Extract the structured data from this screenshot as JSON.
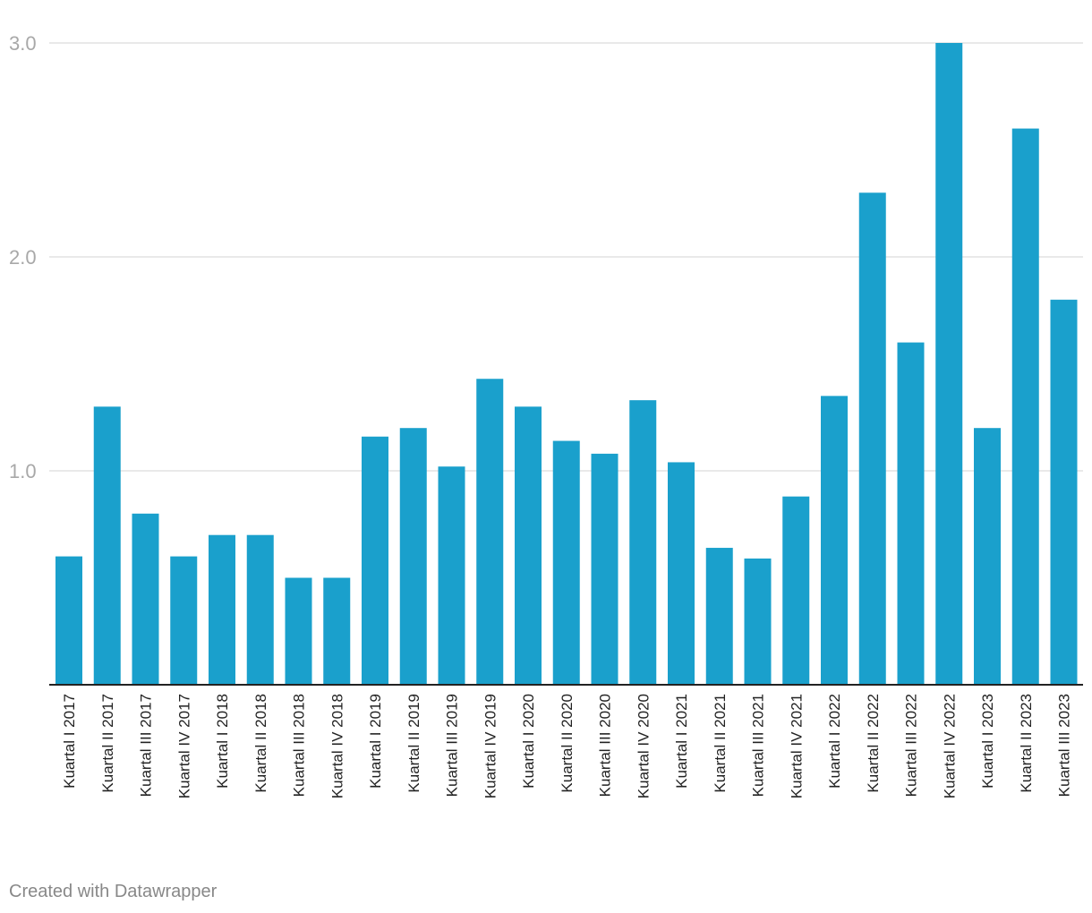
{
  "chart_data": {
    "type": "bar",
    "title": "",
    "xlabel": "",
    "ylabel": "",
    "ylim": [
      0,
      3.0
    ],
    "yticks": [
      1.0,
      2.0,
      3.0
    ],
    "ytick_labels": [
      "1.0",
      "2.0",
      "3.0"
    ],
    "grid": true,
    "bar_color": "#1aa0cc",
    "categories": [
      "Kuartal I 2017",
      "Kuartal II 2017",
      "Kuartal III 2017",
      "Kuartal IV 2017",
      "Kuartal I 2018",
      "Kuartal II 2018",
      "Kuartal III 2018",
      "Kuartal IV 2018",
      "Kuartal I 2019",
      "Kuartal II 2019",
      "Kuartal III 2019",
      "Kuartal IV 2019",
      "Kuartal I 2020",
      "Kuartal II 2020",
      "Kuartal III 2020",
      "Kuartal IV 2020",
      "Kuartal I 2021",
      "Kuartal II 2021",
      "Kuartal III 2021",
      "Kuartal IV 2021",
      "Kuartal I 2022",
      "Kuartal II 2022",
      "Kuartal III 2022",
      "Kuartal IV 2022",
      "Kuartal I 2023",
      "Kuartal II 2023",
      "Kuartal III 2023"
    ],
    "values": [
      0.6,
      1.3,
      0.8,
      0.6,
      0.7,
      0.7,
      0.5,
      0.5,
      1.16,
      1.2,
      1.02,
      1.43,
      1.3,
      1.14,
      1.08,
      1.33,
      1.04,
      0.64,
      0.59,
      0.88,
      1.35,
      2.3,
      1.6,
      3.0,
      1.2,
      2.6,
      1.8
    ]
  },
  "footer": {
    "credit": "Created with Datawrapper"
  }
}
